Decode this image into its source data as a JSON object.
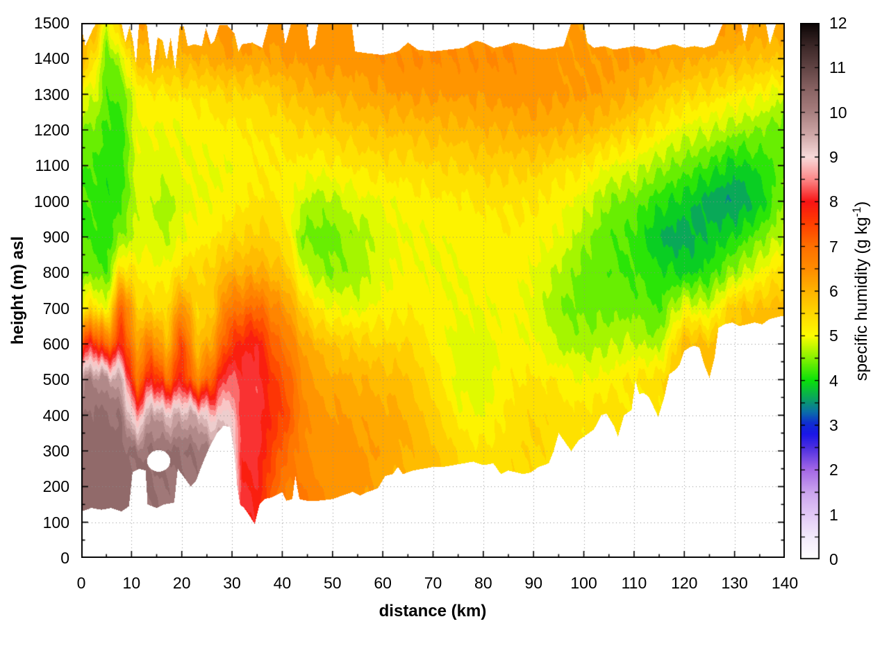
{
  "chart_data": {
    "type": "heatmap",
    "title": "",
    "xlabel": "distance (km)",
    "ylabel": "height (m) asl",
    "colorbar_label_prefix": "specific humidity (g kg",
    "colorbar_label_sup": "-1",
    "colorbar_label_suffix": ")",
    "xlim": [
      0,
      140
    ],
    "ylim": [
      0,
      1500
    ],
    "clim": [
      0,
      12
    ],
    "x_ticks": [
      0,
      10,
      20,
      30,
      40,
      50,
      60,
      70,
      80,
      90,
      100,
      110,
      120,
      130,
      140
    ],
    "x_minor_ticks": [
      5,
      15,
      25,
      35,
      45,
      55,
      65,
      75,
      85,
      95,
      105,
      115,
      125,
      135
    ],
    "y_ticks": [
      0,
      100,
      200,
      300,
      400,
      500,
      600,
      700,
      800,
      900,
      1000,
      1100,
      1200,
      1300,
      1400,
      1500
    ],
    "y_minor_ticks": [
      50,
      150,
      250,
      350,
      450,
      550,
      650,
      750,
      850,
      950,
      1050,
      1150,
      1250,
      1350,
      1450
    ],
    "cb_ticks": [
      0,
      1,
      2,
      3,
      4,
      5,
      6,
      7,
      8,
      9,
      10,
      11,
      12
    ],
    "cb_minor_step": 0.5,
    "grid_on": true,
    "band_step": 0.25,
    "palette": [
      [
        0,
        "#ffffff"
      ],
      [
        0.5,
        "#f3eafb"
      ],
      [
        1,
        "#e2c9f6"
      ],
      [
        1.5,
        "#cba4ee"
      ],
      [
        2,
        "#a468e6"
      ],
      [
        2.5,
        "#4b2ee0"
      ],
      [
        2.8,
        "#1a16e8"
      ],
      [
        3.05,
        "#0f2fd0"
      ],
      [
        3.3,
        "#0a6fa8"
      ],
      [
        3.6,
        "#09a55e"
      ],
      [
        4,
        "#0ae00a"
      ],
      [
        4.5,
        "#86f200"
      ],
      [
        5,
        "#fcfc00"
      ],
      [
        5.5,
        "#ffd800"
      ],
      [
        6,
        "#ffb300"
      ],
      [
        6.5,
        "#ff8c00"
      ],
      [
        7,
        "#ff7000"
      ],
      [
        7.5,
        "#ff4000"
      ],
      [
        8,
        "#f81414"
      ],
      [
        8.5,
        "#fc8888"
      ],
      [
        9,
        "#f8dada"
      ],
      [
        9.5,
        "#cfa8a8"
      ],
      [
        10,
        "#a87f7f"
      ],
      [
        10.5,
        "#8a6464"
      ],
      [
        11,
        "#614444"
      ],
      [
        11.5,
        "#3a2626"
      ],
      [
        12,
        "#0a0404"
      ]
    ],
    "grid": {
      "x": [
        0,
        3,
        5,
        8,
        11,
        14,
        17,
        20,
        23,
        26,
        29,
        32,
        35,
        38,
        41,
        44,
        47,
        50,
        55,
        60,
        65,
        70,
        75,
        80,
        85,
        90,
        95,
        100,
        105,
        110,
        115,
        120,
        125,
        130,
        135,
        140
      ],
      "y": [
        0,
        100,
        200,
        300,
        400,
        500,
        600,
        700,
        800,
        900,
        1000,
        1100,
        1200,
        1300,
        1400,
        1500
      ],
      "z": [
        [
          10.3,
          10.3,
          10.4,
          10.4,
          10.3,
          9.9,
          7.6,
          5.2,
          4.4,
          4.2,
          4.2,
          4.3,
          4.5,
          5.0,
          6.0,
          6.3
        ],
        [
          10.3,
          10.3,
          10.4,
          10.4,
          10.3,
          10.0,
          7.8,
          5.4,
          4.4,
          4.2,
          4.2,
          4.2,
          4.4,
          4.8,
          5.2,
          6.0
        ],
        [
          10.4,
          10.4,
          10.4,
          10.4,
          10.3,
          9.8,
          6.8,
          4.8,
          4.2,
          4.1,
          4.0,
          4.1,
          4.2,
          4.3,
          4.3,
          4.8
        ],
        [
          10.4,
          10.4,
          10.4,
          10.4,
          10.2,
          9.5,
          7.8,
          7.3,
          5.5,
          4.5,
          4.2,
          4.1,
          4.1,
          4.3,
          4.8,
          6.0
        ],
        [
          10.3,
          10.3,
          10.3,
          10.2,
          8.5,
          6.8,
          6.2,
          5.6,
          5.2,
          4.8,
          4.8,
          4.9,
          5.0,
          5.0,
          5.8,
          6.3
        ],
        [
          10.2,
          10.2,
          10.3,
          10.3,
          9.8,
          8.0,
          6.8,
          5.5,
          5.1,
          4.9,
          4.8,
          4.9,
          5.0,
          5.2,
          6.0,
          6.2
        ],
        [
          10.1,
          10.1,
          10.2,
          10.3,
          9.3,
          7.0,
          5.8,
          5.4,
          5.1,
          4.7,
          4.6,
          4.9,
          5.0,
          5.2,
          5.9,
          6.2
        ],
        [
          10.2,
          10.2,
          10.2,
          10.3,
          9.5,
          7.9,
          7.6,
          6.5,
          5.4,
          5.0,
          4.9,
          5.0,
          5.0,
          5.3,
          6.0,
          6.2
        ],
        [
          10.2,
          10.2,
          10.2,
          10.2,
          9.5,
          6.6,
          5.8,
          5.5,
          5.5,
          5.1,
          5.0,
          5.0,
          5.1,
          5.3,
          6.0,
          6.3
        ],
        [
          10.2,
          10.2,
          10.2,
          10.0,
          8.8,
          7.2,
          6.2,
          5.6,
          5.6,
          5.2,
          5.0,
          5.0,
          5.1,
          5.4,
          6.1,
          6.4
        ],
        [
          10.1,
          10.1,
          10.2,
          10.0,
          9.2,
          8.4,
          7.4,
          6.8,
          6.0,
          5.4,
          5.1,
          5.0,
          5.2,
          5.5,
          6.2,
          6.4
        ],
        [
          8.2,
          8.1,
          8.0,
          8.0,
          8.1,
          8.1,
          7.9,
          6.9,
          6.0,
          5.5,
          5.2,
          5.1,
          5.2,
          5.5,
          6.2,
          6.4
        ],
        [
          7.9,
          7.9,
          8.0,
          8.1,
          8.2,
          8.2,
          8.0,
          7.1,
          6.1,
          5.6,
          5.3,
          5.2,
          5.3,
          5.5,
          6.2,
          6.4
        ],
        [
          7.0,
          7.1,
          7.2,
          7.5,
          7.7,
          7.6,
          7.2,
          6.6,
          5.9,
          5.5,
          5.3,
          5.2,
          5.3,
          5.6,
          6.2,
          6.4
        ],
        [
          6.5,
          6.6,
          6.7,
          7.0,
          7.4,
          7.2,
          6.8,
          6.3,
          5.7,
          5.3,
          5.1,
          5.2,
          5.4,
          5.8,
          6.3,
          6.4
        ],
        [
          6.9,
          7.0,
          6.8,
          6.6,
          6.6,
          6.5,
          6.2,
          5.6,
          4.9,
          4.4,
          4.8,
          5.2,
          5.5,
          5.9,
          6.3,
          6.4
        ],
        [
          6.6,
          6.6,
          6.5,
          6.4,
          6.3,
          6.2,
          5.9,
          5.2,
          4.6,
          4.4,
          4.6,
          5.1,
          5.5,
          6.0,
          6.4,
          6.4
        ],
        [
          6.5,
          6.5,
          6.4,
          6.4,
          6.3,
          6.1,
          5.7,
          5.0,
          4.5,
          4.4,
          4.7,
          5.2,
          5.6,
          6.0,
          6.4,
          6.4
        ],
        [
          6.3,
          6.4,
          6.4,
          6.3,
          6.2,
          6.0,
          5.6,
          4.9,
          4.6,
          4.6,
          4.9,
          5.3,
          5.7,
          6.1,
          6.4,
          6.4
        ],
        [
          6.0,
          6.0,
          6.1,
          6.2,
          6.1,
          5.9,
          5.5,
          5.1,
          4.9,
          4.9,
          5.0,
          5.4,
          5.8,
          6.2,
          6.5,
          6.4
        ],
        [
          5.9,
          5.9,
          5.9,
          6.0,
          6.0,
          5.8,
          5.5,
          5.2,
          5.1,
          5.0,
          5.1,
          5.4,
          5.8,
          6.3,
          6.5,
          6.4
        ],
        [
          5.8,
          5.8,
          5.8,
          5.8,
          5.6,
          5.4,
          5.2,
          5.1,
          5.0,
          5.0,
          5.2,
          5.5,
          5.9,
          6.3,
          6.5,
          6.4
        ],
        [
          5.6,
          5.6,
          5.6,
          5.5,
          5.1,
          4.9,
          4.9,
          5.0,
          5.0,
          5.1,
          5.2,
          5.5,
          5.9,
          6.3,
          6.5,
          6.4
        ],
        [
          5.5,
          5.5,
          5.4,
          5.3,
          5.0,
          4.8,
          4.9,
          5.0,
          5.1,
          5.1,
          5.3,
          5.6,
          6.0,
          6.3,
          6.5,
          6.4
        ],
        [
          5.5,
          5.5,
          5.5,
          5.4,
          5.3,
          5.2,
          5.1,
          5.1,
          5.1,
          5.2,
          5.3,
          5.6,
          6.0,
          6.4,
          6.5,
          6.4
        ],
        [
          5.4,
          5.4,
          5.4,
          5.5,
          5.5,
          5.3,
          5.0,
          4.9,
          5.0,
          5.1,
          5.3,
          5.6,
          6.1,
          6.4,
          6.4,
          6.4
        ],
        [
          5.4,
          5.4,
          5.4,
          5.4,
          5.4,
          5.2,
          4.7,
          4.5,
          4.7,
          5.0,
          5.1,
          5.4,
          6.0,
          6.3,
          6.3,
          6.3
        ],
        [
          5.3,
          5.3,
          5.3,
          5.3,
          5.3,
          5.0,
          4.6,
          4.4,
          4.4,
          4.6,
          4.9,
          5.3,
          5.9,
          6.3,
          6.3,
          6.3
        ],
        [
          5.2,
          5.2,
          5.2,
          5.4,
          5.5,
          5.1,
          4.7,
          4.4,
          4.3,
          4.3,
          4.5,
          5.0,
          5.7,
          6.2,
          6.3,
          6.3
        ],
        [
          5.1,
          5.1,
          5.1,
          5.1,
          5.2,
          5.3,
          4.8,
          4.4,
          4.2,
          4.2,
          4.4,
          4.9,
          5.5,
          6.0,
          6.3,
          6.3
        ],
        [
          5.3,
          5.3,
          5.3,
          5.3,
          5.2,
          5.4,
          4.6,
          4.2,
          4.1,
          3.7,
          4.1,
          4.6,
          5.2,
          5.7,
          6.2,
          6.3
        ],
        [
          5.6,
          5.6,
          5.6,
          5.6,
          5.6,
          6.0,
          5.9,
          5.0,
          3.9,
          3.6,
          3.9,
          4.4,
          4.9,
          5.5,
          6.1,
          6.3
        ],
        [
          5.8,
          5.8,
          5.8,
          5.8,
          5.8,
          6.0,
          5.8,
          4.8,
          4.1,
          3.8,
          3.6,
          4.2,
          4.8,
          5.4,
          6.0,
          6.3
        ],
        [
          6.0,
          6.0,
          6.0,
          6.0,
          6.0,
          6.0,
          5.9,
          5.7,
          4.6,
          4.0,
          3.5,
          3.9,
          4.6,
          5.2,
          5.9,
          6.3
        ],
        [
          6.0,
          6.0,
          6.0,
          6.0,
          6.0,
          6.0,
          6.0,
          5.8,
          5.0,
          4.4,
          3.8,
          4.1,
          4.5,
          5.1,
          5.8,
          6.2
        ],
        [
          6.1,
          6.1,
          6.1,
          6.1,
          6.1,
          6.1,
          6.0,
          5.9,
          5.5,
          4.8,
          4.6,
          4.4,
          4.3,
          4.8,
          5.7,
          6.2
        ]
      ]
    },
    "terrain_bottom": {
      "x": [
        0,
        2,
        4,
        6,
        8,
        9.5,
        10.2,
        11.5,
        12.8,
        13.2,
        15,
        16.5,
        18.5,
        19.2,
        20.5,
        21.8,
        22.8,
        24,
        25.5,
        27,
        28.3,
        29.6,
        30.4,
        31,
        31.6,
        32.4,
        33.4,
        34.5,
        35.5,
        36.5,
        38,
        40,
        40.8,
        42,
        42.6,
        43.4,
        45,
        47,
        50,
        52,
        54,
        55.5,
        57,
        59,
        60.5,
        62,
        63,
        64,
        66,
        68,
        70,
        72,
        74,
        76,
        78,
        80,
        82,
        83.5,
        85,
        86.5,
        88,
        89.5,
        91,
        93,
        94,
        95,
        96,
        97.5,
        99,
        100.5,
        102,
        103.5,
        104.5,
        106,
        106.8,
        108,
        109.5,
        110.3,
        111,
        112,
        113,
        114,
        114.8,
        116,
        117,
        118,
        119,
        120,
        121,
        122,
        123,
        124,
        125,
        126,
        126.8,
        128,
        129.5,
        131,
        132.5,
        134,
        135.5,
        137,
        138.5,
        140
      ],
      "h": [
        130,
        140,
        135,
        140,
        130,
        145,
        240,
        250,
        245,
        150,
        140,
        150,
        155,
        250,
        225,
        200,
        215,
        260,
        310,
        350,
        370,
        368,
        300,
        205,
        150,
        140,
        120,
        95,
        150,
        165,
        170,
        185,
        160,
        165,
        230,
        165,
        160,
        160,
        165,
        175,
        185,
        175,
        185,
        195,
        230,
        235,
        255,
        235,
        245,
        250,
        255,
        255,
        260,
        265,
        270,
        260,
        265,
        235,
        245,
        240,
        235,
        240,
        255,
        265,
        300,
        350,
        330,
        300,
        330,
        345,
        360,
        400,
        405,
        370,
        340,
        400,
        415,
        497,
        460,
        462,
        450,
        420,
        395,
        450,
        515,
        525,
        540,
        580,
        590,
        595,
        590,
        540,
        505,
        560,
        645,
        655,
        660,
        650,
        655,
        660,
        655,
        670,
        675,
        680
      ]
    },
    "data_top": {
      "x": [
        0,
        0.8,
        2.2,
        3,
        8,
        8.8,
        9.6,
        10.3,
        10.9,
        11.5,
        13,
        14.2,
        15.2,
        16.2,
        17,
        17.8,
        18.7,
        19.6,
        20.4,
        21.2,
        22.5,
        24,
        24.8,
        25.8,
        26.5,
        27.5,
        29,
        30.5,
        31.3,
        32,
        34,
        36,
        37.3,
        40,
        40.6,
        41.8,
        44.8,
        45.5,
        46.5,
        47.2,
        53.8,
        54.5,
        57,
        60,
        63,
        65,
        67,
        70,
        73,
        76,
        78.5,
        80,
        82,
        84,
        86,
        88,
        90,
        92,
        94,
        96,
        97.5,
        100,
        100.7,
        102,
        104,
        106,
        108,
        110,
        112,
        114,
        116,
        118,
        120,
        122,
        124,
        126,
        127.7,
        131.3,
        132,
        132.8,
        136.2,
        137,
        138.3,
        140
      ],
      "h": [
        1490,
        1435,
        1480,
        1500,
        1500,
        1445,
        1490,
        1450,
        1385,
        1500,
        1500,
        1355,
        1460,
        1450,
        1395,
        1460,
        1370,
        1490,
        1490,
        1435,
        1440,
        1435,
        1485,
        1440,
        1450,
        1495,
        1495,
        1470,
        1420,
        1440,
        1445,
        1430,
        1500,
        1500,
        1440,
        1500,
        1500,
        1425,
        1440,
        1500,
        1500,
        1420,
        1415,
        1410,
        1420,
        1445,
        1425,
        1420,
        1425,
        1430,
        1450,
        1445,
        1430,
        1435,
        1445,
        1440,
        1430,
        1425,
        1430,
        1435,
        1500,
        1500,
        1445,
        1430,
        1435,
        1425,
        1430,
        1435,
        1430,
        1425,
        1435,
        1440,
        1430,
        1435,
        1430,
        1440,
        1500,
        1500,
        1445,
        1500,
        1500,
        1440,
        1500,
        1500
      ]
    },
    "holes": [
      {
        "cx": 15.4,
        "cy": 272,
        "rx": 2.3,
        "ry": 30
      }
    ]
  }
}
